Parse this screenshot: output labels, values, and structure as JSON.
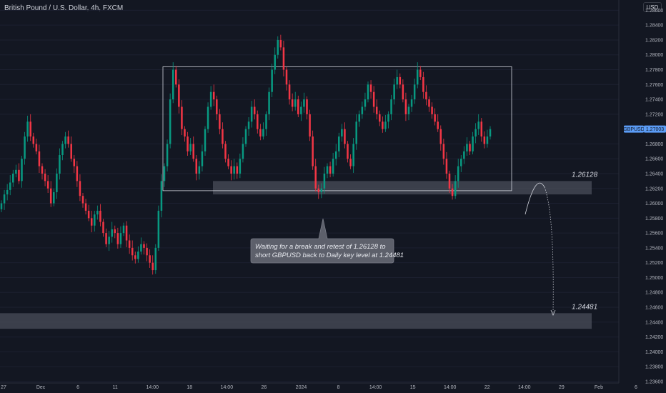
{
  "header": {
    "symbol_title": "British Pound / U.S. Dollar, 4h, FXCM",
    "currency": "USD"
  },
  "chart_data": {
    "type": "candlestick",
    "symbol": "GBPUSD",
    "current_price_label": "1.27003",
    "price_axis": [
      "1.28600",
      "1.28400",
      "1.28200",
      "1.28000",
      "1.27800",
      "1.27600",
      "1.27400",
      "1.27200",
      "1.26800",
      "1.26600",
      "1.26400",
      "1.26200",
      "1.26000",
      "1.25800",
      "1.25600",
      "1.25400",
      "1.25200",
      "1.25000",
      "1.24800",
      "1.24600",
      "1.24400",
      "1.24200",
      "1.24000",
      "1.23800",
      "1.23600"
    ],
    "ylim": [
      1.2358,
      1.287
    ],
    "time_axis": [
      "27",
      "Dec",
      "6",
      "11",
      "14:00",
      "18",
      "14:00",
      "26",
      "2024",
      "8",
      "14:00",
      "15",
      "14:00",
      "22",
      "14:00",
      "29",
      "Feb",
      "6"
    ],
    "range_box": {
      "top": 1.2784,
      "bottom": 1.2617
    },
    "zones": [
      {
        "label": "1.26128",
        "top": 1.263,
        "bottom": 1.2612
      },
      {
        "label": "1.24481",
        "top": 1.2452,
        "bottom": 1.2431
      }
    ],
    "annotation": "Waiting for a break and retest of 1.26128 to short GBPUSD back to Daily key level at 1.24481",
    "colors": {
      "up": "#089981",
      "down": "#f23645",
      "background": "#131722",
      "text": "#b2b5be"
    },
    "closes": [
      1.26,
      1.2612,
      1.2618,
      1.2628,
      1.264,
      1.2645,
      1.263,
      1.266,
      1.269,
      1.271,
      1.269,
      1.268,
      1.267,
      1.265,
      1.264,
      1.263,
      1.262,
      1.26,
      1.2615,
      1.264,
      1.2665,
      1.268,
      1.269,
      1.268,
      1.266,
      1.265,
      1.263,
      1.261,
      1.26,
      1.259,
      1.258,
      1.257,
      1.2585,
      1.259,
      1.2575,
      1.256,
      1.2545,
      1.2555,
      1.2565,
      1.256,
      1.2545,
      1.256,
      1.257,
      1.255,
      1.254,
      1.253,
      1.2525,
      1.2535,
      1.2545,
      1.254,
      1.253,
      1.252,
      1.251,
      1.254,
      1.259,
      1.263,
      1.265,
      1.268,
      1.274,
      1.278,
      1.276,
      1.273,
      1.27,
      1.269,
      1.267,
      1.268,
      1.266,
      1.264,
      1.265,
      1.267,
      1.27,
      1.273,
      1.275,
      1.274,
      1.272,
      1.27,
      1.268,
      1.266,
      1.265,
      1.264,
      1.265,
      1.264,
      1.266,
      1.268,
      1.27,
      1.271,
      1.273,
      1.272,
      1.27,
      1.269,
      1.27,
      1.272,
      1.275,
      1.278,
      1.28,
      1.282,
      1.281,
      1.278,
      1.276,
      1.274,
      1.273,
      1.274,
      1.272,
      1.273,
      1.274,
      1.272,
      1.269,
      1.265,
      1.262,
      1.2615,
      1.262,
      1.264,
      1.265,
      1.264,
      1.266,
      1.267,
      1.269,
      1.27,
      1.268,
      1.266,
      1.265,
      1.268,
      1.271,
      1.272,
      1.273,
      1.274,
      1.276,
      1.275,
      1.273,
      1.272,
      1.271,
      1.27,
      1.271,
      1.272,
      1.274,
      1.276,
      1.277,
      1.276,
      1.274,
      1.272,
      1.273,
      1.274,
      1.276,
      1.278,
      1.277,
      1.275,
      1.274,
      1.273,
      1.272,
      1.271,
      1.27,
      1.268,
      1.266,
      1.264,
      1.262,
      1.261,
      1.263,
      1.265,
      1.266,
      1.267,
      1.268,
      1.267,
      1.269,
      1.27,
      1.271,
      1.269,
      1.268,
      1.269,
      1.27
    ]
  }
}
